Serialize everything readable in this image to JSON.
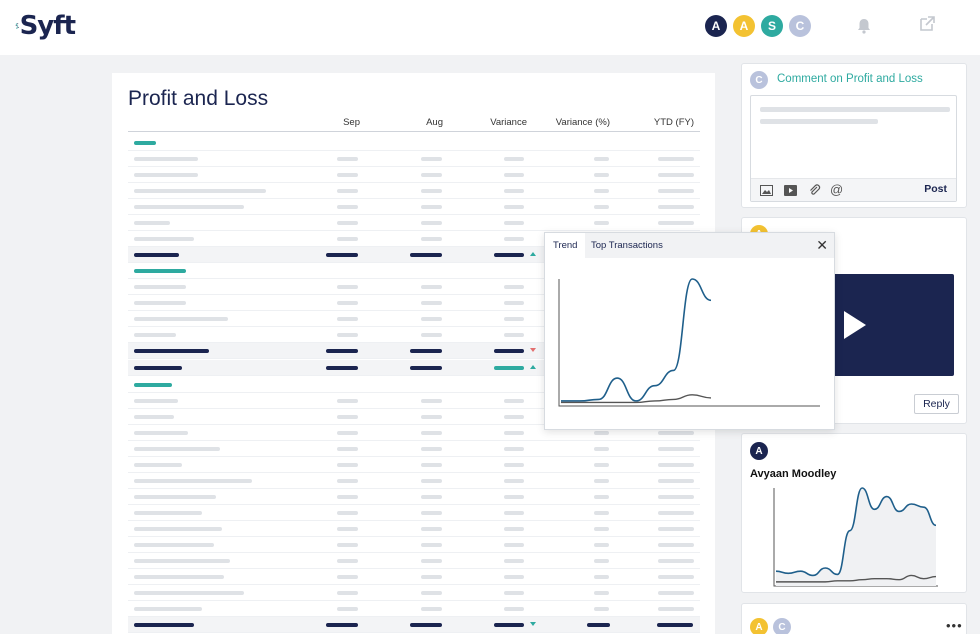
{
  "header": {
    "logo_text": "Syft",
    "avatars": [
      {
        "letter": "A",
        "color": "#1b2550"
      },
      {
        "letter": "A",
        "color": "#f3c232"
      },
      {
        "letter": "S",
        "color": "#2eaaa0"
      },
      {
        "letter": "C",
        "color": "#b9c2dc"
      }
    ],
    "bell_icon": "bell-icon",
    "external_icon": "external-link-icon"
  },
  "report": {
    "title": "Profit and Loss",
    "columns": [
      "Sep",
      "Aug",
      "Variance",
      "Variance (%)",
      "YTD (FY)"
    ]
  },
  "popup": {
    "tabs": [
      "Trend",
      "Top Transactions"
    ],
    "active_tab": "Trend",
    "close_label": "✕",
    "chart_data": {
      "type": "line",
      "series": [
        {
          "values": [
            2,
            2,
            3,
            17,
            2,
            12,
            22,
            82,
            68
          ]
        },
        {
          "values": [
            1,
            1,
            1,
            1,
            1,
            2,
            3,
            6,
            4
          ]
        }
      ]
    }
  },
  "comment_card": {
    "avatar": "C",
    "label": "Comment on Profit and Loss",
    "tools": [
      "image-icon",
      "video-icon",
      "attachment-icon",
      "mention-icon"
    ],
    "mention_glyph": "@",
    "post_label": "Post"
  },
  "video_card": {
    "avatar": "A",
    "reply_label": "Reply"
  },
  "person_card": {
    "avatar": "A",
    "name": "Avyaan Moodley",
    "chart_data": {
      "type": "area",
      "series": [
        {
          "values": [
            12,
            10,
            12,
            8,
            15,
            9,
            50,
            90,
            70,
            82,
            68,
            75,
            72,
            55
          ]
        },
        {
          "values": [
            2,
            2,
            2,
            2,
            2,
            3,
            3,
            4,
            5,
            5,
            4,
            8,
            5,
            7
          ]
        }
      ]
    }
  },
  "bottom_card": {
    "avatars": [
      "A",
      "C"
    ],
    "more_label": "•••"
  },
  "colors": {
    "navy": "#1b2550",
    "teal": "#2eaaa0",
    "trend_line": "#1f5f8b",
    "up_arrow": "#2eaaa0",
    "down_arrow": "#e36f6f"
  }
}
